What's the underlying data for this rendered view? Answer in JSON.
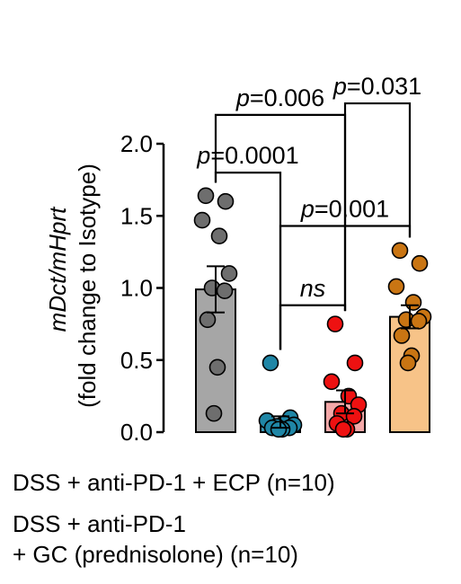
{
  "chart_data": {
    "type": "bar",
    "ylabel_main": "mDct/mHprt",
    "ylabel_sub": "(fold change to Isotype)",
    "ylim": [
      0,
      2.0
    ],
    "yticks": [
      "0.0",
      "0.5",
      "1.0",
      "1.5",
      "2.0"
    ],
    "grid": false,
    "error_bars": "SEM",
    "series": [
      {
        "fill": "#a6a6a6",
        "point_color": "#6e6e6e",
        "mean": 0.99,
        "sem": 0.16,
        "points": [
          1.64,
          1.6,
          1.47,
          1.36,
          1.1,
          1.0,
          0.98,
          0.78,
          0.45,
          0.13
        ]
      },
      {
        "fill": "#3d96b3",
        "point_color": "#1f86a6",
        "mean": 0.07,
        "sem": 0.04,
        "points": [
          0.48,
          0.1,
          0.08,
          0.06,
          0.05,
          0.04,
          0.03,
          0.03,
          0.02,
          0.02
        ]
      },
      {
        "fill": "#f4a8a8",
        "point_color": "#ee1111",
        "mean": 0.21,
        "sem": 0.08,
        "points": [
          0.75,
          0.48,
          0.35,
          0.25,
          0.19,
          0.13,
          0.11,
          0.06,
          0.02,
          0.02
        ]
      },
      {
        "fill": "#f7c388",
        "point_color": "#c97513",
        "mean": 0.8,
        "sem": 0.08,
        "points": [
          1.26,
          1.17,
          1.01,
          0.9,
          0.8,
          0.78,
          0.77,
          0.67,
          0.53,
          0.48
        ]
      }
    ],
    "annotations": [
      {
        "label": "p=0.0001",
        "from": 0,
        "to": 1,
        "level": 1.8
      },
      {
        "label": "p=0.006",
        "from": 0,
        "to": 2,
        "level": 2.2
      },
      {
        "label": "p=0.031",
        "from": 2,
        "to": 3,
        "level": 2.28
      },
      {
        "label": "p=0.001",
        "from": 1,
        "to": 3,
        "level": 1.43
      },
      {
        "label": "ns",
        "from": 1,
        "to": 2,
        "level": 0.88
      }
    ]
  },
  "legend": {
    "line1": "DSS + anti-PD-1 + ECP (n=10)",
    "line2": "DSS + anti-PD-1",
    "line3": "+ GC (prednisolone) (n=10)"
  }
}
